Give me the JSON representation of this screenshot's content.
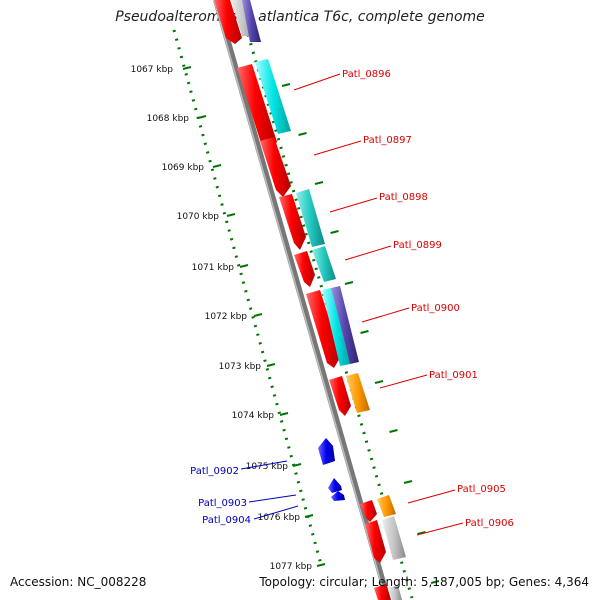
{
  "title": "Pseudoalteromonas atlantica T6c, complete genome",
  "footer": {
    "accession": "Accession: NC_008228",
    "summary": "Topology: circular; Length: 5,187,005 bp; Genes: 4,364"
  },
  "ruler_labels": [
    "1067 kbp",
    "1068 kbp",
    "1069 kbp",
    "1070 kbp",
    "1071 kbp",
    "1072 kbp",
    "1073 kbp",
    "1074 kbp",
    "1075 kbp",
    "1076 kbp",
    "1077 kbp"
  ],
  "gene_labels_forward": [
    "Patl_0896",
    "Patl_0897",
    "Patl_0898",
    "Patl_0899",
    "Patl_0900",
    "Patl_0901",
    "Patl_0905",
    "Patl_0906"
  ],
  "gene_labels_reverse": [
    "Patl_0902",
    "Patl_0903",
    "Patl_0904"
  ],
  "colors": {
    "forward_label": "#dd0000",
    "reverse_label": "#0000bb",
    "forward_gene": "#ee0000",
    "reverse_gene": "#0000ee",
    "cog_cyan": "#00e0e0",
    "cog_orange": "#ff9900",
    "cog_purple": "#5544aa",
    "ruler": "#007700",
    "backbone": "#888888"
  }
}
